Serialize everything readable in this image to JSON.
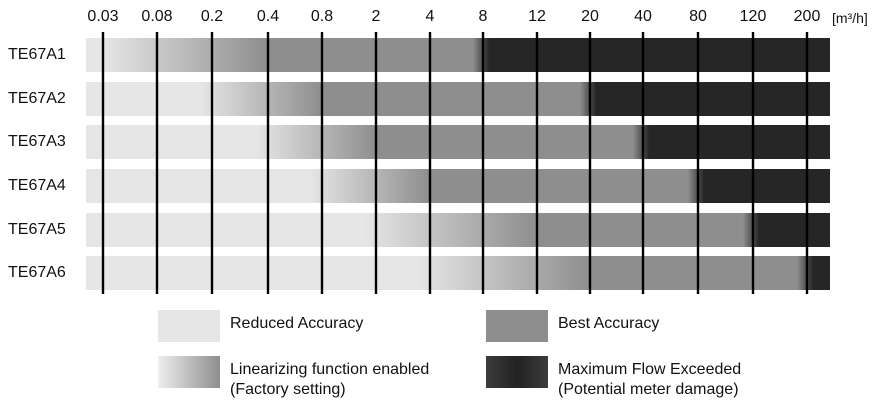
{
  "chart_data": {
    "type": "range-bar",
    "unit": "[m³/h]",
    "x_ticks": [
      "0.03",
      "0.08",
      "0.2",
      "0.4",
      "0.8",
      "2",
      "4",
      "8",
      "12",
      "20",
      "40",
      "80",
      "120",
      "200"
    ],
    "rows": [
      {
        "name": "TE67A1",
        "reduced_to": "0.03",
        "linearizing_to": "0.4",
        "best_to": "8",
        "max_flow_exceeded_from": "8"
      },
      {
        "name": "TE67A2",
        "reduced_to": "0.2",
        "linearizing_to": "0.8",
        "best_to": "20",
        "max_flow_exceeded_from": "20"
      },
      {
        "name": "TE67A3",
        "reduced_to": "0.4",
        "linearizing_to": "2",
        "best_to": "40",
        "max_flow_exceeded_from": "40"
      },
      {
        "name": "TE67A4",
        "reduced_to": "0.8",
        "linearizing_to": "4",
        "best_to": "80",
        "max_flow_exceeded_from": "80"
      },
      {
        "name": "TE67A5",
        "reduced_to": "2",
        "linearizing_to": "12",
        "best_to": "120",
        "max_flow_exceeded_from": "120"
      },
      {
        "name": "TE67A6",
        "reduced_to": "4",
        "linearizing_to": "20",
        "best_to": "200",
        "max_flow_exceeded_from": "200"
      }
    ],
    "legend": [
      {
        "key": "reduced",
        "lines": [
          "Reduced Accuracy"
        ],
        "color": "#e6e6e6"
      },
      {
        "key": "best",
        "lines": [
          "Best Accuracy"
        ],
        "color": "#8e8e8e"
      },
      {
        "key": "linearizing",
        "lines": [
          "Linearizing function enabled",
          "(Factory setting)"
        ],
        "color": "#b5b5b5"
      },
      {
        "key": "max",
        "lines": [
          "Maximum Flow Exceeded",
          "(Potential meter damage)"
        ],
        "color": "#2a2a2a"
      }
    ]
  }
}
